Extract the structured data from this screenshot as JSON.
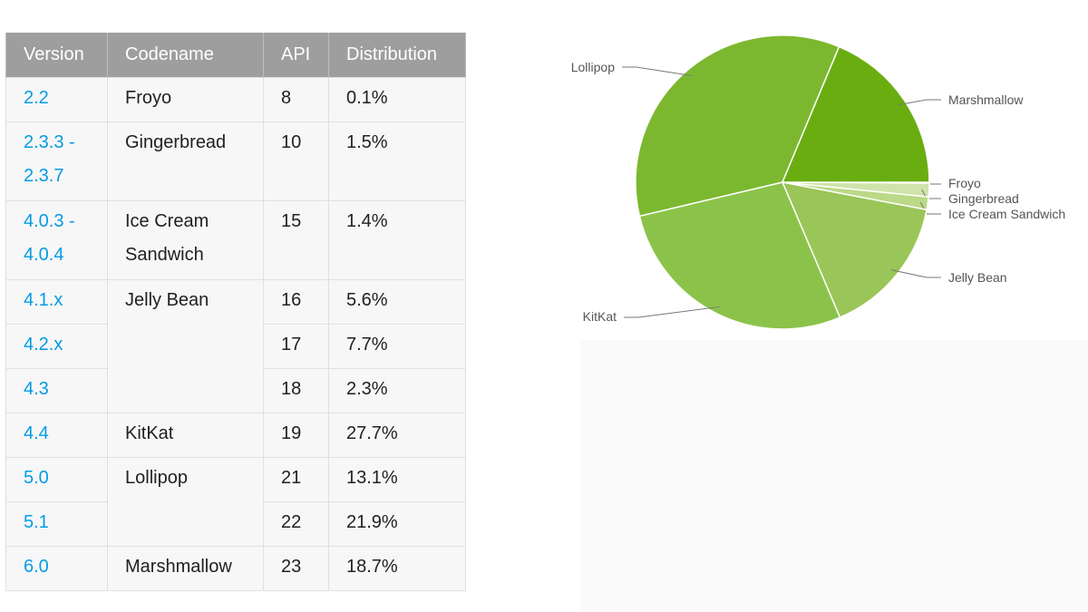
{
  "table": {
    "headers": [
      "Version",
      "Codename",
      "API",
      "Distribution"
    ],
    "rows": [
      {
        "version": [
          "2.2"
        ],
        "codename": [
          "Froyo"
        ],
        "codename_rowspan": 1,
        "api": "8",
        "distribution": "0.1%"
      },
      {
        "version": [
          "2.3.3 -",
          "2.3.7"
        ],
        "codename": [
          "Gingerbread"
        ],
        "codename_rowspan": 1,
        "api": "10",
        "distribution": "1.5%"
      },
      {
        "version": [
          "4.0.3 -",
          "4.0.4"
        ],
        "codename": [
          "Ice Cream",
          "Sandwich"
        ],
        "codename_rowspan": 1,
        "api": "15",
        "distribution": "1.4%"
      },
      {
        "version": [
          "4.1.x"
        ],
        "codename": [
          "Jelly Bean"
        ],
        "codename_rowspan": 3,
        "api": "16",
        "distribution": "5.6%"
      },
      {
        "version": [
          "4.2.x"
        ],
        "codename": null,
        "codename_rowspan": 0,
        "api": "17",
        "distribution": "7.7%"
      },
      {
        "version": [
          "4.3"
        ],
        "codename": null,
        "codename_rowspan": 0,
        "api": "18",
        "distribution": "2.3%"
      },
      {
        "version": [
          "4.4"
        ],
        "codename": [
          "KitKat"
        ],
        "codename_rowspan": 1,
        "api": "19",
        "distribution": "27.7%"
      },
      {
        "version": [
          "5.0"
        ],
        "codename": [
          "Lollipop"
        ],
        "codename_rowspan": 2,
        "api": "21",
        "distribution": "13.1%"
      },
      {
        "version": [
          "5.1"
        ],
        "codename": null,
        "codename_rowspan": 0,
        "api": "22",
        "distribution": "21.9%"
      },
      {
        "version": [
          "6.0"
        ],
        "codename": [
          "Marshmallow"
        ],
        "codename_rowspan": 1,
        "api": "23",
        "distribution": "18.7%"
      }
    ]
  },
  "colors": {
    "header_bg": "#9e9e9e",
    "version_link": "#039be5",
    "pie_colors": [
      "#e3efcd",
      "#cfe4aa",
      "#bbd986",
      "#9ac558",
      "#8bc34a",
      "#7cb82f",
      "#6aad11"
    ]
  },
  "chart_data": {
    "type": "pie",
    "slices": [
      {
        "label": "Froyo",
        "value": 0.1
      },
      {
        "label": "Gingerbread",
        "value": 1.5
      },
      {
        "label": "Ice Cream Sandwich",
        "value": 1.4
      },
      {
        "label": "Jelly Bean",
        "value": 15.6
      },
      {
        "label": "KitKat",
        "value": 27.7
      },
      {
        "label": "Lollipop",
        "value": 35.0
      },
      {
        "label": "Marshmallow",
        "value": 18.7
      }
    ],
    "start_angle_deg": 0,
    "direction": "clockwise"
  }
}
